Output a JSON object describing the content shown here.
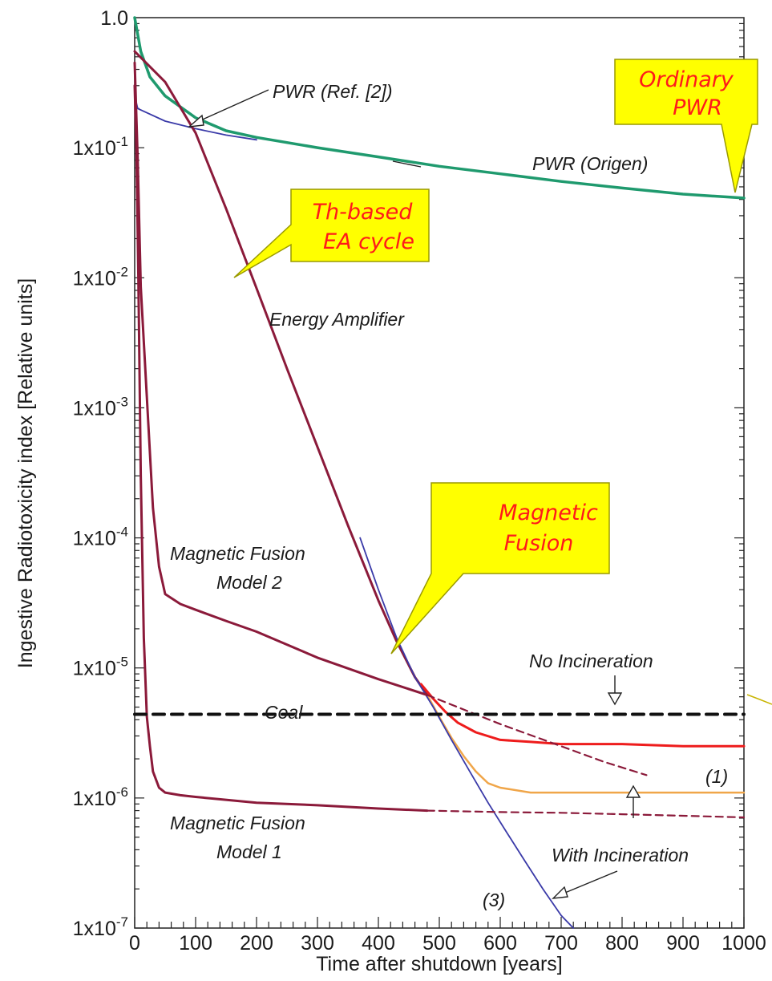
{
  "chart_data": {
    "type": "line",
    "xlabel": "Time after shutdown [years]",
    "ylabel": "Ingestive Radiotoxicity index [Relative units]",
    "xlim": [
      0,
      1000
    ],
    "ylim": [
      1e-07,
      1
    ],
    "yscale": "log",
    "xticks": [
      "0",
      "100",
      "200",
      "300",
      "400",
      "500",
      "600",
      "700",
      "800",
      "900",
      "1000"
    ],
    "yticks": [
      {
        "value": 1,
        "base": "1.0",
        "exp": ""
      },
      {
        "value": 0.1,
        "base": "1x10",
        "exp": "-1"
      },
      {
        "value": 0.01,
        "base": "1x10",
        "exp": "-2"
      },
      {
        "value": 0.001,
        "base": "1x10",
        "exp": "-3"
      },
      {
        "value": 0.0001,
        "base": "1x10",
        "exp": "-4"
      },
      {
        "value": 1e-05,
        "base": "1x10",
        "exp": "-5"
      },
      {
        "value": 1e-06,
        "base": "1x10",
        "exp": "-6"
      },
      {
        "value": 1e-07,
        "base": "1x10",
        "exp": "-7"
      }
    ],
    "series": [
      {
        "key": "pwr_origen",
        "color": "#1f9a6e",
        "width": 3.5,
        "dash": "",
        "x": [
          0,
          10,
          25,
          50,
          100,
          150,
          200,
          300,
          400,
          500,
          600,
          700,
          800,
          900,
          1000
        ],
        "y": [
          1.0,
          0.55,
          0.35,
          0.25,
          0.17,
          0.135,
          0.12,
          0.1,
          0.085,
          0.072,
          0.063,
          0.055,
          0.049,
          0.044,
          0.041
        ]
      },
      {
        "key": "pwr_ref2",
        "color": "#3a3aa8",
        "width": 1.8,
        "dash": "",
        "x": [
          0,
          5,
          50,
          100,
          150,
          200
        ],
        "y": [
          0.25,
          0.2,
          0.16,
          0.14,
          0.125,
          0.115
        ]
      },
      {
        "key": "energy_amplifier",
        "color": "#8b1a3a",
        "width": 3,
        "dash": "",
        "x": [
          0,
          50,
          100,
          150,
          200,
          250,
          300,
          350,
          400,
          430,
          460,
          480
        ],
        "y": [
          0.55,
          0.32,
          0.13,
          0.034,
          0.0083,
          0.002,
          0.0005,
          0.000125,
          3.3e-05,
          1.6e-05,
          8.5e-06,
          6.2e-06
        ]
      },
      {
        "key": "no_incineration",
        "color": "#ee1c1c",
        "width": 3,
        "dash": "",
        "x": [
          470,
          490,
          510,
          530,
          560,
          600,
          650,
          700,
          800,
          900,
          1000
        ],
        "y": [
          7.5e-06,
          5.8e-06,
          4.6e-06,
          3.8e-06,
          3.2e-06,
          2.8e-06,
          2.7e-06,
          2.6e-06,
          2.6e-06,
          2.5e-06,
          2.5e-06
        ]
      },
      {
        "key": "with_incineration",
        "color": "#f0a64a",
        "width": 2.5,
        "dash": "",
        "x": [
          480,
          500,
          520,
          540,
          560,
          580,
          600,
          650,
          700,
          800,
          1000
        ],
        "y": [
          6.2e-06,
          4.2e-06,
          2.9e-06,
          2.1e-06,
          1.6e-06,
          1.3e-06,
          1.2e-06,
          1.1e-06,
          1.1e-06,
          1.1e-06,
          1.1e-06
        ]
      },
      {
        "key": "curve_3",
        "color": "#3a3aa8",
        "width": 1.8,
        "dash": "",
        "x": [
          370,
          400,
          430,
          460,
          490,
          520,
          550,
          580,
          610,
          640,
          670,
          700,
          720
        ],
        "y": [
          0.0001,
          4e-05,
          1.7e-05,
          8.5e-06,
          5e-06,
          2.8e-06,
          1.6e-06,
          9.2e-07,
          5.5e-07,
          3.3e-07,
          2e-07,
          1.25e-07,
          1e-07
        ]
      },
      {
        "key": "mf_model2",
        "color": "#8b1a3a",
        "width": 3,
        "dash": "",
        "x": [
          0,
          5,
          10,
          20,
          30,
          40,
          50,
          75,
          100,
          150,
          200,
          300,
          400,
          480
        ],
        "y": [
          0.45,
          0.08,
          0.0085,
          0.0012,
          0.00017,
          6e-05,
          3.7e-05,
          3.1e-05,
          2.8e-05,
          2.3e-05,
          1.9e-05,
          1.2e-05,
          8.2e-06,
          6.2e-06
        ]
      },
      {
        "key": "mf_model2_ext",
        "color": "#8b1a3a",
        "width": 2.2,
        "dash": "9,6",
        "x": [
          480,
          600,
          700,
          770,
          840
        ],
        "y": [
          6.2e-06,
          3.7e-06,
          2.5e-06,
          1.9e-06,
          1.5e-06
        ]
      },
      {
        "key": "mf_model1",
        "color": "#8b1a3a",
        "width": 3,
        "dash": "",
        "x": [
          0,
          3,
          6,
          10,
          15,
          20,
          25,
          30,
          40,
          50,
          75,
          100,
          200,
          300,
          400,
          480
        ],
        "y": [
          0.3,
          0.09,
          0.01,
          0.0003,
          1.7e-05,
          4.2e-06,
          2.5e-06,
          1.6e-06,
          1.2e-06,
          1.1e-06,
          1.05e-06,
          1.02e-06,
          9.2e-07,
          8.8e-07,
          8.3e-07,
          8e-07
        ]
      },
      {
        "key": "mf_model1_ext",
        "color": "#8b1a3a",
        "width": 2.2,
        "dash": "9,6",
        "x": [
          480,
          600,
          700,
          800,
          900,
          1000
        ],
        "y": [
          8e-07,
          7.8e-07,
          7.7e-07,
          7.5e-07,
          7.3e-07,
          7.1e-07
        ]
      },
      {
        "key": "coal",
        "color": "#111111",
        "width": 4,
        "dash": "14,9",
        "x": [
          0,
          1000
        ],
        "y": [
          4.4e-06,
          4.4e-06
        ]
      }
    ],
    "labels": {
      "pwr_ref2": "PWR  (Ref. [2])",
      "pwr_origen": "PWR (Origen)",
      "energy_amplifier": "Energy Amplifier",
      "mf2_line1": "Magnetic Fusion",
      "mf2_line2": "Model 2",
      "mf1_line1": "Magnetic Fusion",
      "mf1_line2": "Model 1",
      "coal": "Coal",
      "no_incineration": "No Incineration",
      "with_incineration": "With Incineration",
      "curve1": "(1)",
      "curve3": "(3)"
    },
    "callouts": {
      "ordinary_pwr": [
        "Ordinary",
        "PWR"
      ],
      "th_based": [
        "Th-based",
        "EA cycle"
      ],
      "magnetic_fusion": [
        "Magnetic",
        "Fusion"
      ]
    },
    "colors": {
      "callout_fill": "#ffff00",
      "callout_border": "#9a9a00",
      "callout_text": "#ff1a1a"
    }
  }
}
